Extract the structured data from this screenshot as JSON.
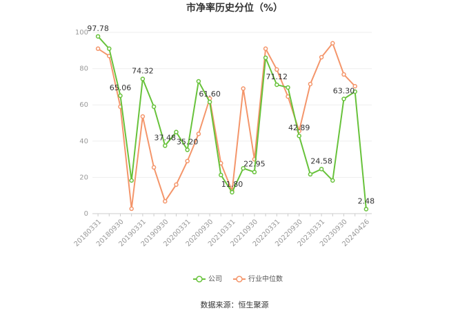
{
  "chart_data": {
    "type": "line",
    "title": "市净率历史分位（%）",
    "source": "数据来源：恒生聚源",
    "categories": [
      "20180331",
      null,
      "20180930",
      null,
      "20190331",
      null,
      "20190930",
      null,
      "20200331",
      null,
      "20200930",
      null,
      "20210331",
      null,
      "20210930",
      null,
      "20220331",
      null,
      "20220930",
      null,
      "20230331",
      null,
      "20230930",
      null,
      "20240426"
    ],
    "series": [
      {
        "name": "公司",
        "color": "#67c23a",
        "values": [
          97.78,
          91,
          65.06,
          18.3,
          74.32,
          59,
          37.48,
          45,
          35.2,
          73,
          61.6,
          21.3,
          11.8,
          25,
          22.95,
          86,
          71.12,
          69.6,
          42.89,
          21.7,
          24.58,
          18.3,
          63.3,
          67.3,
          2.48
        ],
        "value_labels": [
          "97.78",
          null,
          "65.06",
          null,
          "74.32",
          null,
          "37.48",
          null,
          "35.20",
          null,
          "61.60",
          null,
          "11.80",
          null,
          "22.95",
          null,
          "71.12",
          null,
          "42.89",
          null,
          "24.58",
          null,
          "63.30",
          null,
          "2.48"
        ]
      },
      {
        "name": "行业中位数",
        "color": "#f4956a",
        "values": [
          91,
          87,
          59,
          2.7,
          53.6,
          25.5,
          6.8,
          16,
          29,
          44,
          63.5,
          27.8,
          12.5,
          69,
          30,
          91,
          79.5,
          64.6,
          45.6,
          71.5,
          86.3,
          94,
          76.8,
          70.3,
          null
        ]
      }
    ],
    "ylim": [
      0,
      100
    ],
    "yticks": [
      0,
      20,
      40,
      60,
      80,
      100
    ],
    "grid": true,
    "legend": "bottom"
  }
}
